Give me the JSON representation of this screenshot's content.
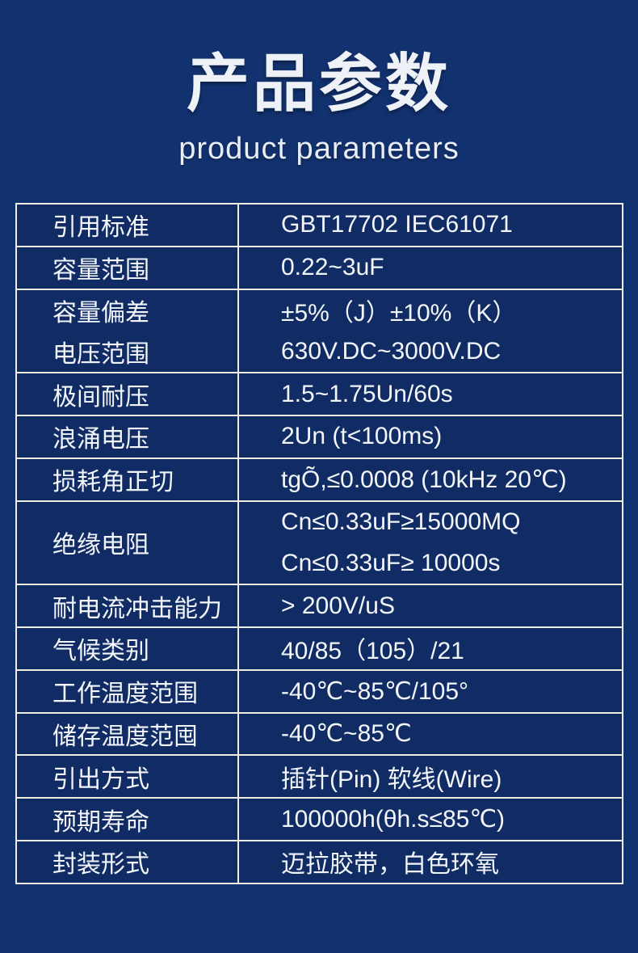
{
  "page": {
    "title": "产品参数",
    "subtitle": "product parameters"
  },
  "colors": {
    "background": "#12316f",
    "cell_background": "#112c64",
    "table_border": "#f0eee2",
    "text": "#f3f6fa"
  },
  "table": {
    "rows": [
      {
        "labels": [
          "引用标准"
        ],
        "values": [
          "GBT17702 IEC61071"
        ]
      },
      {
        "labels": [
          "容量范围"
        ],
        "values": [
          "0.22~3uF"
        ]
      },
      {
        "labels": [
          "容量偏差",
          "电压范围"
        ],
        "values": [
          "±5%（J）±10%（K）",
          "630V.DC~3000V.DC"
        ]
      },
      {
        "labels": [
          "极间耐压"
        ],
        "values": [
          "1.5~1.75Un/60s"
        ]
      },
      {
        "labels": [
          "浪涌电压"
        ],
        "values": [
          "2Un (t<100ms)"
        ]
      },
      {
        "labels": [
          "损耗角正切"
        ],
        "values": [
          "tgÕ,≤0.0008 (10kHz 20℃)"
        ]
      },
      {
        "labels": [
          "绝缘电阻"
        ],
        "values": [
          "Cn≤0.33uF≥15000MQ",
          "Cn≤0.33uF≥ 10000s"
        ]
      },
      {
        "labels": [
          "耐电流冲击能力"
        ],
        "values": [
          "> 200V/uS"
        ]
      },
      {
        "labels": [
          "气候类别"
        ],
        "values": [
          "40/85（105）/21"
        ]
      },
      {
        "labels": [
          "工作温度范围"
        ],
        "values": [
          "-40℃~85℃/105°"
        ]
      },
      {
        "labels": [
          "储存温度范囤"
        ],
        "values": [
          "-40℃~85℃"
        ]
      },
      {
        "labels": [
          "引出方式"
        ],
        "values": [
          "插针(Pin) 软线(Wire)"
        ]
      },
      {
        "labels": [
          "预期寿命"
        ],
        "values": [
          "100000h(θh.s≤85℃)"
        ]
      },
      {
        "labels": [
          "封装形式"
        ],
        "values": [
          "迈拉胶带，白色环氧"
        ]
      }
    ]
  }
}
